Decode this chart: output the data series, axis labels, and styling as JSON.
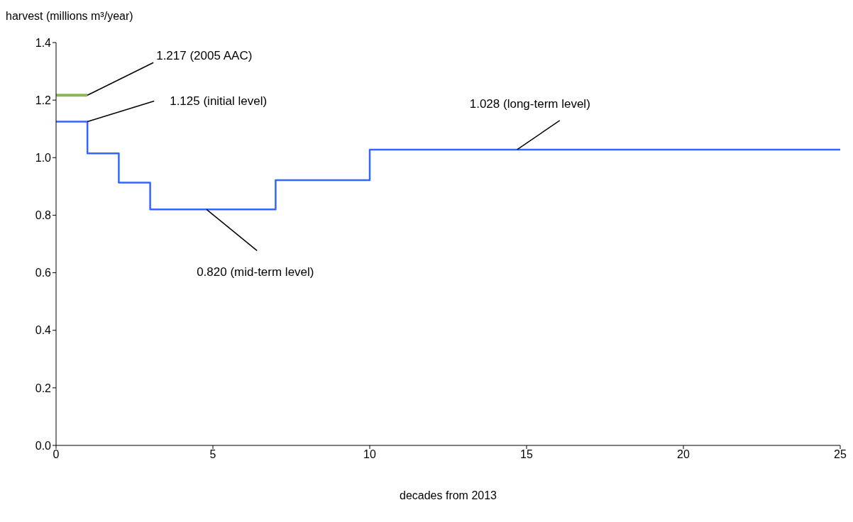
{
  "chart_data": {
    "type": "step",
    "xlabel": "decades from 2013",
    "ylabel": "harvest (millions m³/year)",
    "xlim": [
      0,
      25
    ],
    "xticks": [
      0,
      5,
      10,
      15,
      20,
      25
    ],
    "ylim": [
      0,
      1.4
    ],
    "yticks": [
      {
        "value": 0,
        "label": "0.0"
      },
      0.2,
      0.4,
      0.6,
      0.8,
      {
        "value": 1,
        "label": "1.0"
      },
      1.2,
      1.4
    ],
    "grid": false,
    "series": [
      {
        "type": "line",
        "color": "#8db554",
        "x": [
          0,
          1
        ],
        "values": [
          1.217,
          1.217
        ]
      },
      {
        "type": "step",
        "color": "#3366ff",
        "x": [
          0,
          1,
          2,
          3,
          7,
          10,
          25
        ],
        "values": [
          1.125,
          1.015,
          0.913,
          0.82,
          0.922,
          1.028,
          1.028
        ]
      }
    ],
    "annotations": [
      {
        "text": "1.217 (2005 AAC)",
        "x": 1,
        "y": 1.217
      },
      {
        "text": "1.125 (initial level)",
        "x": 1,
        "y": 1.125
      },
      {
        "text": "0.820 (mid-term level)",
        "x": 4.8,
        "y": 0.82
      },
      {
        "text": "1.028 (long-term level)",
        "x": 14.7,
        "y": 1.028
      }
    ]
  }
}
